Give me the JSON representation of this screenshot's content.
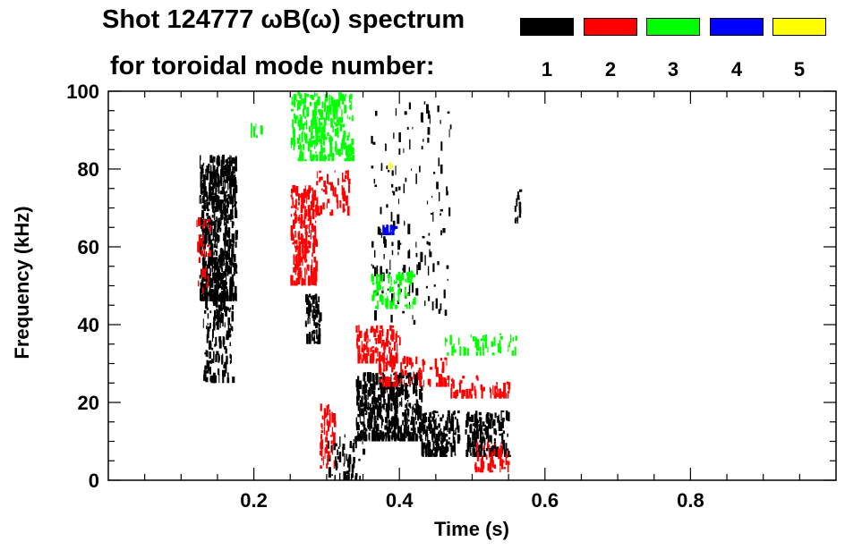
{
  "title": {
    "line1": "Shot 124777 ωB(ω) spectrum",
    "line2": "for toroidal mode number:"
  },
  "legend": [
    {
      "label": "1",
      "color": "#000000"
    },
    {
      "label": "2",
      "color": "#ff0000"
    },
    {
      "label": "3",
      "color": "#00ff00"
    },
    {
      "label": "4",
      "color": "#0000ff"
    },
    {
      "label": "5",
      "color": "#ffff00"
    }
  ],
  "chart_data": {
    "type": "scatter",
    "title": "Shot 124777 ωB(ω) spectrum for toroidal mode number",
    "xlabel": "Time (s)",
    "ylabel": "Frequency (kHz)",
    "xlim": [
      0.0,
      1.0
    ],
    "ylim": [
      0,
      100
    ],
    "xticks": [
      "0.2",
      "0.4",
      "0.6",
      "0.8"
    ],
    "xtick_values": [
      0.2,
      0.4,
      0.6,
      0.8
    ],
    "yticks": [
      "0",
      "20",
      "40",
      "60",
      "80",
      "100"
    ],
    "ytick_values": [
      0,
      20,
      40,
      60,
      80,
      100
    ],
    "series": [
      {
        "name": "1",
        "color": "#000000",
        "regions": [
          {
            "t": [
              0.125,
              0.175
            ],
            "f": [
              46,
              84
            ],
            "density": 0.85
          },
          {
            "t": [
              0.13,
              0.17
            ],
            "f": [
              25,
              58
            ],
            "density": 0.35
          },
          {
            "t": [
              0.27,
              0.29
            ],
            "f": [
              35,
              48
            ],
            "density": 0.6
          },
          {
            "t": [
              0.34,
              0.43
            ],
            "f": [
              10,
              28
            ],
            "density": 0.75
          },
          {
            "t": [
              0.43,
              0.48
            ],
            "f": [
              6,
              18
            ],
            "density": 0.7
          },
          {
            "t": [
              0.49,
              0.55
            ],
            "f": [
              6,
              18
            ],
            "density": 0.55
          },
          {
            "t": [
              0.36,
              0.47
            ],
            "f": [
              40,
              98
            ],
            "density": 0.06
          },
          {
            "t": [
              0.3,
              0.35
            ],
            "f": [
              0,
              12
            ],
            "density": 0.25
          },
          {
            "t": [
              0.558,
              0.565
            ],
            "f": [
              66,
              75
            ],
            "density": 0.6
          }
        ]
      },
      {
        "name": "2",
        "color": "#ff0000",
        "regions": [
          {
            "t": [
              0.25,
              0.285
            ],
            "f": [
              50,
              76
            ],
            "density": 0.6
          },
          {
            "t": [
              0.285,
              0.33
            ],
            "f": [
              68,
              80
            ],
            "density": 0.25
          },
          {
            "t": [
              0.34,
              0.4
            ],
            "f": [
              30,
              40
            ],
            "density": 0.5
          },
          {
            "t": [
              0.37,
              0.47
            ],
            "f": [
              24,
              32
            ],
            "density": 0.3
          },
          {
            "t": [
              0.47,
              0.55
            ],
            "f": [
              21,
              27
            ],
            "density": 0.3
          },
          {
            "t": [
              0.29,
              0.31
            ],
            "f": [
              3,
              20
            ],
            "density": 0.4
          },
          {
            "t": [
              0.5,
              0.55
            ],
            "f": [
              2,
              10
            ],
            "density": 0.3
          },
          {
            "t": [
              0.12,
              0.14
            ],
            "f": [
              48,
              68
            ],
            "density": 0.2
          }
        ]
      },
      {
        "name": "3",
        "color": "#00ff00",
        "regions": [
          {
            "t": [
              0.25,
              0.335
            ],
            "f": [
              82,
              100
            ],
            "density": 0.45
          },
          {
            "t": [
              0.36,
              0.42
            ],
            "f": [
              44,
              54
            ],
            "density": 0.35
          },
          {
            "t": [
              0.46,
              0.56
            ],
            "f": [
              32,
              38
            ],
            "density": 0.2
          },
          {
            "t": [
              0.195,
              0.21
            ],
            "f": [
              88,
              92
            ],
            "density": 0.4
          }
        ]
      },
      {
        "name": "4",
        "color": "#0000ff",
        "regions": [
          {
            "t": [
              0.375,
              0.395
            ],
            "f": [
              63,
              66
            ],
            "density": 0.7
          }
        ]
      },
      {
        "name": "5",
        "color": "#ffff00",
        "regions": [
          {
            "t": [
              0.38,
              0.39
            ],
            "f": [
              80,
              81.5
            ],
            "density": 0.5
          }
        ]
      }
    ]
  }
}
